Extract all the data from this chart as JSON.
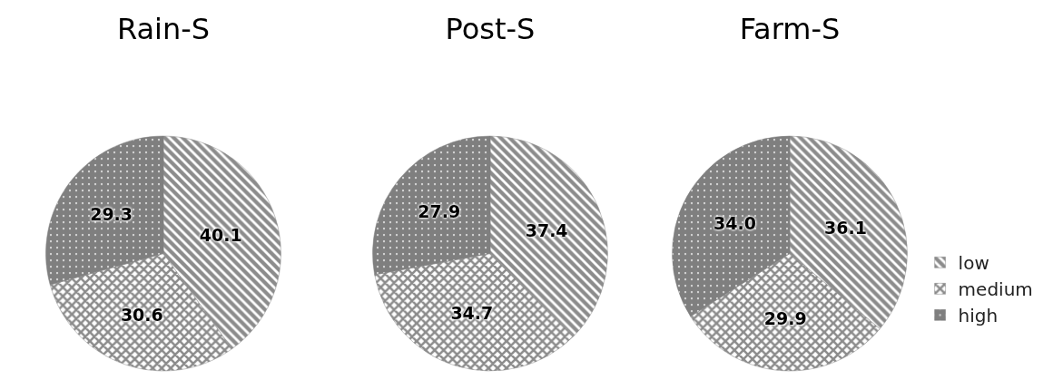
{
  "chart_data": [
    {
      "type": "pie",
      "title": "Rain-S",
      "categories": [
        null,
        null,
        null
      ],
      "values": [
        40.1,
        30.6,
        29.3
      ],
      "colors": [
        "#8c8c8c",
        "#8c8c8c",
        "#7f7f7f"
      ],
      "value_labels": [
        "40.1",
        "30.6",
        "29.3"
      ]
    },
    {
      "type": "pie",
      "title": "Post-S",
      "categories": [
        null,
        null,
        null
      ],
      "values": [
        37.4,
        34.7,
        27.9
      ],
      "colors": [
        "#8c8c8c",
        "#8c8c8c",
        "#7f7f7f"
      ],
      "value_labels": [
        "37.4",
        "34.7",
        "27.9"
      ]
    },
    {
      "type": "pie",
      "title": "Farm-S",
      "categories": [
        "low",
        "medium",
        "high"
      ],
      "values": [
        36.1,
        29.9,
        34.0
      ],
      "colors": [
        "#8c8c8c",
        "#8c8c8c",
        "#7f7f7f"
      ],
      "value_labels": [
        "36.1",
        "29.9",
        "34.0"
      ],
      "legend": "right"
    }
  ]
}
